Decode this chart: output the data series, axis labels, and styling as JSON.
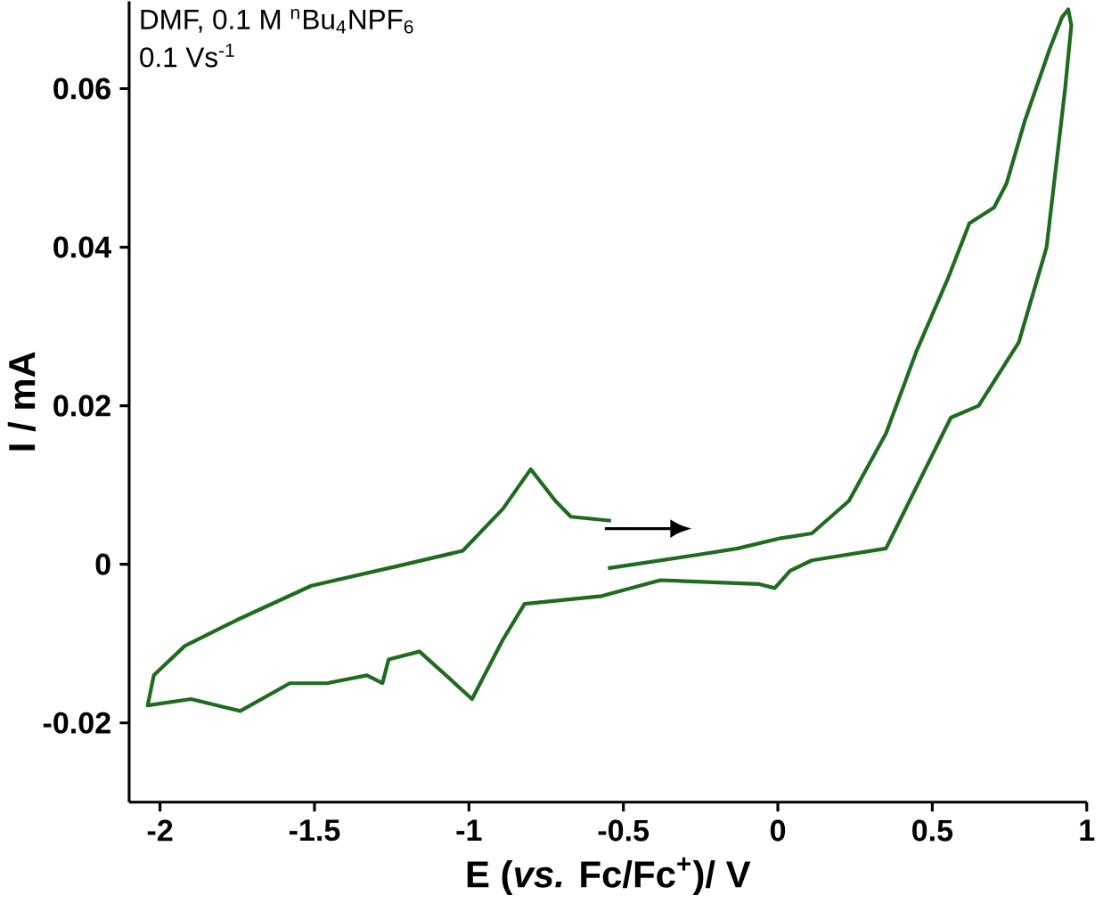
{
  "chart_data": {
    "type": "line",
    "xlabel": "E (*vs.* Fc/Fc$^{+}$)/ V",
    "ylabel": "I / mA",
    "annotations": [
      "DMF, 0.1 M $^{n}$Bu$_{4}$NPF$_{6}$",
      "0.1 Vs$^{-1}$"
    ],
    "xlim": [
      -2.1,
      1.0
    ],
    "ylim": [
      -0.03,
      0.071
    ],
    "xticks": [
      -2,
      -1.5,
      -1,
      -0.5,
      0,
      0.5,
      1
    ],
    "yticks": [
      -0.02,
      0,
      0.02,
      0.04,
      0.06
    ],
    "grid": false,
    "marker": "none",
    "line_style": "solid",
    "series": [
      {
        "color": "#1f6b1f",
        "x": [
          -0.55,
          -0.26,
          -0.13,
          0.01,
          0.11,
          0.23,
          0.35,
          0.45,
          0.55,
          0.62,
          0.7,
          0.74,
          0.8,
          0.88,
          0.92,
          0.94,
          0.95,
          0.93,
          0.87,
          0.78,
          0.65,
          0.56,
          0.35,
          0.11,
          0.04,
          -0.01,
          -0.06,
          -0.38,
          -0.57,
          -0.82,
          -0.89,
          -0.99,
          -1.06,
          -1.16,
          -1.26,
          -1.28,
          -1.33,
          -1.46,
          -1.58,
          -1.74,
          -1.9,
          -2.04,
          -2.02,
          -1.92,
          -1.75,
          -1.51,
          -1.24,
          -1.02,
          -0.89,
          -0.8,
          -0.72,
          -0.67,
          -0.54
        ],
        "values": [
          -0.0005,
          0.0012,
          0.002,
          0.0033,
          0.0039,
          0.008,
          0.0165,
          0.027,
          0.036,
          0.043,
          0.045,
          0.048,
          0.056,
          0.065,
          0.069,
          0.07,
          0.068,
          0.06,
          0.04,
          0.028,
          0.02,
          0.0185,
          0.002,
          0.0005,
          -0.0008,
          -0.003,
          -0.0025,
          -0.002,
          -0.004,
          -0.005,
          -0.0095,
          -0.017,
          -0.0145,
          -0.011,
          -0.012,
          -0.015,
          -0.014,
          -0.015,
          -0.015,
          -0.0185,
          -0.017,
          -0.0178,
          -0.014,
          -0.0103,
          -0.007,
          -0.0027,
          -0.0003,
          0.0017,
          0.007,
          0.012,
          0.008,
          0.006,
          0.0055
        ]
      }
    ]
  }
}
